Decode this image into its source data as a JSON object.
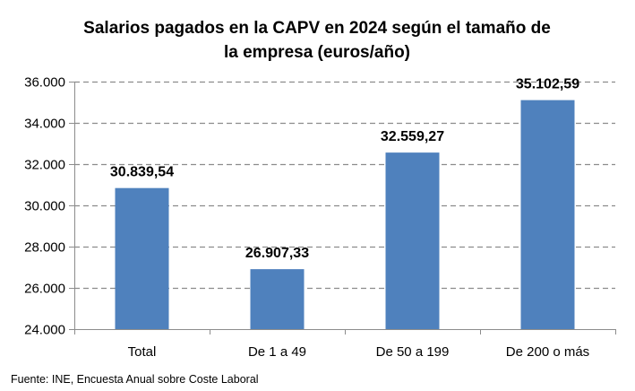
{
  "chart_data": {
    "type": "bar",
    "title_lines": [
      "Salarios pagados en la CAPV en 2024 según el tamaño de",
      "la empresa (euros/año)"
    ],
    "categories": [
      "Total",
      "De 1 a 49",
      "De 50 a 199",
      "De 200 o más"
    ],
    "values": [
      30839.54,
      26907.33,
      32559.27,
      35102.59
    ],
    "data_labels": [
      "30.839,54",
      "26.907,33",
      "32.559,27",
      "35.102,59"
    ],
    "ylim": [
      24000,
      36000
    ],
    "yticks": [
      24000,
      26000,
      28000,
      30000,
      32000,
      34000,
      36000
    ],
    "ytick_labels": [
      "24.000",
      "26.000",
      "28.000",
      "30.000",
      "32.000",
      "34.000",
      "36.000"
    ],
    "xlabel": "",
    "ylabel": "",
    "grid": "horizontal dashed",
    "legend": "none",
    "bar_color": "#4f81bd",
    "grid_color": "#8c8c8c",
    "axis_color": "#8c8c8c",
    "source": "Fuente: INE, Encuesta Anual sobre Coste Laboral"
  }
}
